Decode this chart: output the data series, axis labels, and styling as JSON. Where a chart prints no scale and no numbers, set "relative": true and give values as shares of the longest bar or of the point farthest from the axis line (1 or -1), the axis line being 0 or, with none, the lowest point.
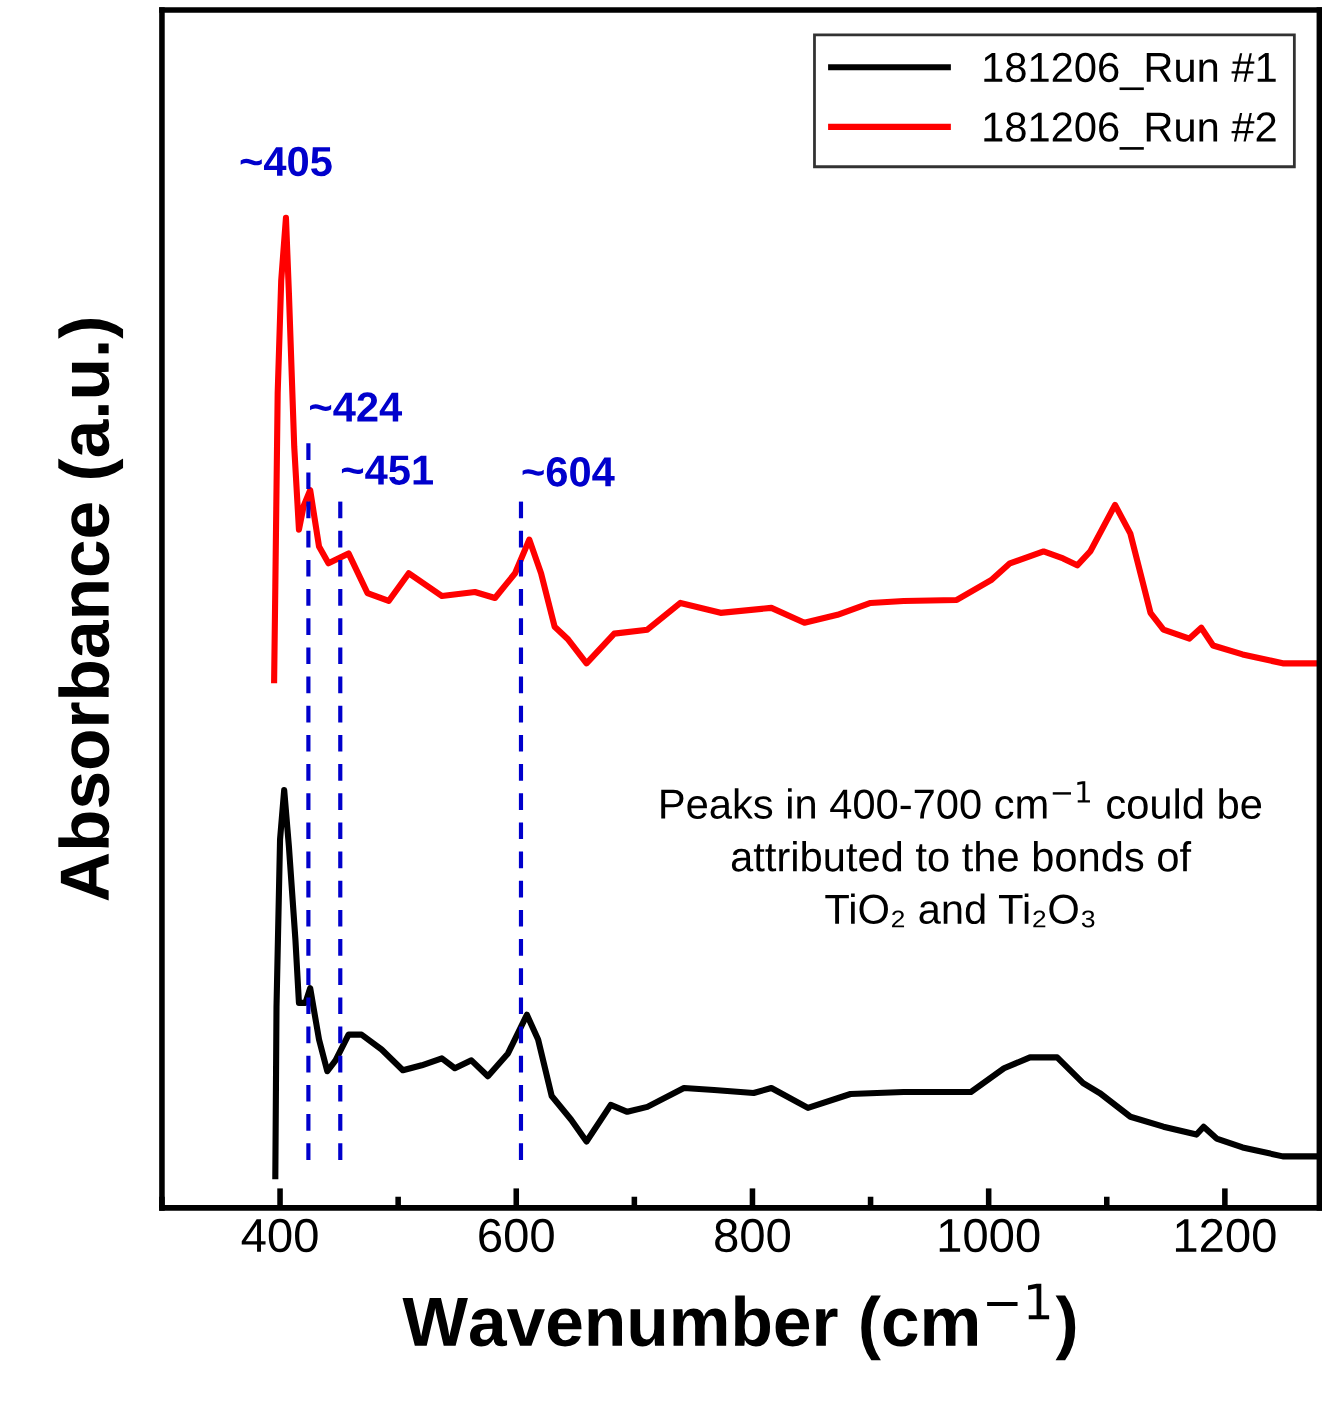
{
  "chart_data": {
    "type": "line",
    "xlabel": "Wavenumber (cm$^{−1}$)",
    "ylabel": "Absorbance (a.u.)",
    "relative": true,
    "xlim": [
      300,
      1280
    ],
    "xticks": [
      400,
      600,
      800,
      1000,
      1200
    ],
    "tick_labels": "x",
    "legend": "top right",
    "grid": false,
    "series": [
      {
        "name": "181206_Run #1",
        "color": "#000000",
        "x": [
          396,
          397,
          400,
          403.5,
          407.5,
          413,
          416,
          421.5,
          425.5,
          433,
          440,
          447,
          458,
          469,
          486,
          504,
          520,
          537,
          548,
          562,
          576,
          593,
          609,
          618.5,
          630,
          646.5,
          659.5,
          680,
          694,
          711,
          742,
          767.5,
          801,
          816,
          847,
          883,
          928,
          985,
          1013,
          1035,
          1058,
          1080,
          1094,
          1120,
          1148,
          1176,
          1182,
          1193,
          1215,
          1249,
          1279
        ],
        "values": [
          0.032,
          0.203,
          0.372,
          0.422,
          0.365,
          0.271,
          0.207,
          0.207,
          0.222,
          0.17,
          0.138,
          0.149,
          0.175,
          0.175,
          0.16,
          0.139,
          0.144,
          0.151,
          0.141,
          0.149,
          0.133,
          0.156,
          0.195,
          0.17,
          0.113,
          0.089,
          0.067,
          0.104,
          0.097,
          0.102,
          0.121,
          0.119,
          0.116,
          0.121,
          0.101,
          0.115,
          0.117,
          0.117,
          0.141,
          0.152,
          0.152,
          0.126,
          0.116,
          0.092,
          0.082,
          0.074,
          0.082,
          0.07,
          0.061,
          0.052,
          0.052
        ]
      },
      {
        "name": "181206_Run #2",
        "color": "#ff0000",
        "x": [
          395,
          396,
          398,
          401,
          405,
          407.5,
          412,
          416,
          420,
          425.5,
          433,
          441,
          458,
          474,
          492,
          509,
          537,
          565,
          582,
          599,
          611,
          621,
          632.5,
          644,
          659.5,
          683,
          711,
          739,
          773,
          816,
          844,
          872,
          900,
          928,
          973,
          1002,
          1018,
          1046.5,
          1063,
          1075,
          1086,
          1107,
          1120,
          1137,
          1148,
          1170,
          1180,
          1190,
          1215,
          1249,
          1279
        ],
        "values": [
          0.533,
          0.628,
          0.823,
          0.937,
          1,
          0.924,
          0.769,
          0.685,
          0.709,
          0.725,
          0.668,
          0.651,
          0.661,
          0.621,
          0.613,
          0.641,
          0.618,
          0.622,
          0.616,
          0.641,
          0.675,
          0.641,
          0.587,
          0.574,
          0.55,
          0.58,
          0.584,
          0.611,
          0.601,
          0.606,
          0.591,
          0.599,
          0.611,
          0.613,
          0.614,
          0.634,
          0.651,
          0.663,
          0.656,
          0.649,
          0.663,
          0.71,
          0.681,
          0.601,
          0.584,
          0.575,
          0.586,
          0.568,
          0.559,
          0.55,
          0.55
        ]
      }
    ],
    "ref_lines": [
      {
        "axis": "x",
        "value": 424,
        "label": "~424",
        "color": "#0000cc",
        "line_style": "dashed"
      },
      {
        "axis": "x",
        "value": 451,
        "label": "~451",
        "color": "#0000cc",
        "line_style": "dashed"
      },
      {
        "axis": "x",
        "value": 604,
        "label": "~604",
        "color": "#0000cc",
        "line_style": "dashed"
      }
    ],
    "annotations": [
      {
        "text": "~405",
        "x": 405,
        "y": 1
      },
      "Peaks in 400-700 cm$^{−1}$ could be\nattributed to the bonds of\nTiO₂ and Ti₂O₃"
    ]
  }
}
